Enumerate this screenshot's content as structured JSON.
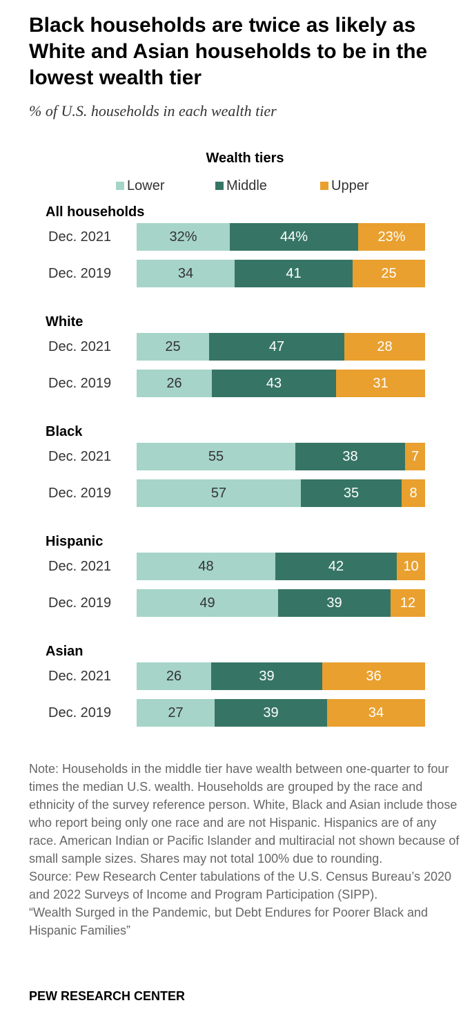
{
  "title": "Black households are twice as likely as White and Asian households to be in the lowest wealth tier",
  "subtitle": "% of U.S. households in each wealth tier",
  "brand": "PEW RESEARCH CENTER",
  "notes": [
    "Note: Households in the middle tier have wealth between one-quarter to four times the median U.S. wealth. Households are grouped by the race and ethnicity of the survey reference person. White, Black and Asian include those who report being only one race and are not Hispanic. Hispanics are of any race. American Indian or Pacific Islander and multiracial not shown because of small sample sizes. Shares may not total 100% due to rounding.",
    "Source: Pew Research Center tabulations of the U.S. Census Bureau’s 2020 and 2022 Surveys of Income and Program Participation (SIPP).",
    "“Wealth Surged in the Pandemic, but Debt Endures for Poorer Black and Hispanic Families”"
  ],
  "chart_data": {
    "type": "bar",
    "orientation": "horizontal",
    "stacked": true,
    "legend_title": "Wealth tiers",
    "legend_position": "top",
    "series": [
      {
        "name": "Lower",
        "color": "#a6d4c8"
      },
      {
        "name": "Middle",
        "color": "#367565"
      },
      {
        "name": "Upper",
        "color": "#e9a02f"
      }
    ],
    "groups": [
      {
        "name": "All households",
        "rows": [
          {
            "label": "Dec. 2021",
            "values": [
              32,
              44,
              23
            ],
            "labels": [
              "32%",
              "44%",
              "23%"
            ]
          },
          {
            "label": "Dec. 2019",
            "values": [
              34,
              41,
              25
            ],
            "labels": [
              "34",
              "41",
              "25"
            ]
          }
        ]
      },
      {
        "name": "White",
        "rows": [
          {
            "label": "Dec. 2021",
            "values": [
              25,
              47,
              28
            ],
            "labels": [
              "25",
              "47",
              "28"
            ]
          },
          {
            "label": "Dec. 2019",
            "values": [
              26,
              43,
              31
            ],
            "labels": [
              "26",
              "43",
              "31"
            ]
          }
        ]
      },
      {
        "name": "Black",
        "rows": [
          {
            "label": "Dec. 2021",
            "values": [
              55,
              38,
              7
            ],
            "labels": [
              "55",
              "38",
              "7"
            ]
          },
          {
            "label": "Dec. 2019",
            "values": [
              57,
              35,
              8
            ],
            "labels": [
              "57",
              "35",
              "8"
            ]
          }
        ]
      },
      {
        "name": "Hispanic",
        "rows": [
          {
            "label": "Dec. 2021",
            "values": [
              48,
              42,
              10
            ],
            "labels": [
              "48",
              "42",
              "10"
            ]
          },
          {
            "label": "Dec. 2019",
            "values": [
              49,
              39,
              12
            ],
            "labels": [
              "49",
              "39",
              "12"
            ]
          }
        ]
      },
      {
        "name": "Asian",
        "rows": [
          {
            "label": "Dec. 2021",
            "values": [
              26,
              39,
              36
            ],
            "labels": [
              "26",
              "39",
              "36"
            ]
          },
          {
            "label": "Dec. 2019",
            "values": [
              27,
              39,
              34
            ],
            "labels": [
              "27",
              "39",
              "34"
            ]
          }
        ]
      }
    ]
  }
}
